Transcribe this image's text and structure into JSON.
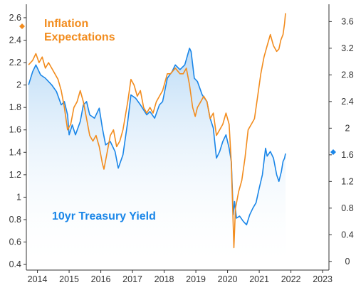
{
  "chart_data": {
    "type": "line",
    "title": "",
    "xlabel": "",
    "ylabel": "",
    "x_ticks": [
      "2014",
      "2015",
      "2016",
      "2017",
      "2018",
      "2019",
      "2020",
      "2021",
      "2022",
      "2023"
    ],
    "x_range": [
      2013.65,
      2023.2
    ],
    "y_left": {
      "ticks": [
        "0.4",
        "0.6",
        "0.8",
        "1",
        "1.2",
        "1.4",
        "1.6",
        "1.8",
        "2",
        "2.2",
        "2.4",
        "2.6"
      ],
      "range": [
        0.35,
        2.72
      ]
    },
    "y_right": {
      "ticks": [
        "0",
        "0.4",
        "0.8",
        "1.2",
        "1.6",
        "2",
        "2.4",
        "2.8",
        "3.2",
        "3.6"
      ],
      "range": [
        -0.13,
        3.86
      ]
    },
    "grid": false,
    "series": [
      {
        "name": "10yr Treasury Yield",
        "axis": "right",
        "color": "#1a86e8",
        "fill": true,
        "points": [
          [
            2013.72,
            2.65
          ],
          [
            2013.85,
            2.85
          ],
          [
            2013.95,
            2.95
          ],
          [
            2014.1,
            2.8
          ],
          [
            2014.25,
            2.75
          ],
          [
            2014.45,
            2.65
          ],
          [
            2014.6,
            2.55
          ],
          [
            2014.75,
            2.35
          ],
          [
            2014.85,
            2.4
          ],
          [
            2014.95,
            2.2
          ],
          [
            2015.0,
            1.9
          ],
          [
            2015.1,
            2.05
          ],
          [
            2015.2,
            1.9
          ],
          [
            2015.35,
            2.1
          ],
          [
            2015.45,
            2.35
          ],
          [
            2015.55,
            2.4
          ],
          [
            2015.65,
            2.2
          ],
          [
            2015.8,
            2.15
          ],
          [
            2015.95,
            2.3
          ],
          [
            2016.05,
            2.0
          ],
          [
            2016.15,
            1.75
          ],
          [
            2016.3,
            1.8
          ],
          [
            2016.45,
            1.65
          ],
          [
            2016.55,
            1.4
          ],
          [
            2016.7,
            1.6
          ],
          [
            2016.85,
            2.1
          ],
          [
            2016.95,
            2.5
          ],
          [
            2017.1,
            2.45
          ],
          [
            2017.25,
            2.35
          ],
          [
            2017.45,
            2.2
          ],
          [
            2017.55,
            2.25
          ],
          [
            2017.7,
            2.15
          ],
          [
            2017.85,
            2.35
          ],
          [
            2017.95,
            2.4
          ],
          [
            2018.1,
            2.75
          ],
          [
            2018.25,
            2.85
          ],
          [
            2018.35,
            2.95
          ],
          [
            2018.5,
            2.88
          ],
          [
            2018.65,
            2.95
          ],
          [
            2018.8,
            3.2
          ],
          [
            2018.85,
            3.15
          ],
          [
            2018.95,
            2.75
          ],
          [
            2019.05,
            2.7
          ],
          [
            2019.2,
            2.5
          ],
          [
            2019.35,
            2.4
          ],
          [
            2019.45,
            2.15
          ],
          [
            2019.55,
            2.0
          ],
          [
            2019.65,
            1.55
          ],
          [
            2019.75,
            1.65
          ],
          [
            2019.85,
            1.8
          ],
          [
            2019.95,
            1.9
          ],
          [
            2020.05,
            1.7
          ],
          [
            2020.12,
            1.5
          ],
          [
            2020.18,
            0.7
          ],
          [
            2020.22,
            0.9
          ],
          [
            2020.28,
            0.65
          ],
          [
            2020.38,
            0.68
          ],
          [
            2020.5,
            0.6
          ],
          [
            2020.6,
            0.55
          ],
          [
            2020.7,
            0.7
          ],
          [
            2020.8,
            0.8
          ],
          [
            2020.9,
            0.88
          ],
          [
            2021.0,
            1.1
          ],
          [
            2021.1,
            1.3
          ],
          [
            2021.2,
            1.7
          ],
          [
            2021.25,
            1.58
          ],
          [
            2021.35,
            1.65
          ],
          [
            2021.45,
            1.55
          ],
          [
            2021.55,
            1.3
          ],
          [
            2021.62,
            1.2
          ],
          [
            2021.7,
            1.35
          ],
          [
            2021.75,
            1.5
          ],
          [
            2021.8,
            1.55
          ],
          [
            2021.83,
            1.62
          ]
        ]
      },
      {
        "name": "Inflation Expectations",
        "axis": "left",
        "color": "#f28c1e",
        "fill": false,
        "points": [
          [
            2013.72,
            2.18
          ],
          [
            2013.85,
            2.22
          ],
          [
            2013.95,
            2.28
          ],
          [
            2014.05,
            2.2
          ],
          [
            2014.15,
            2.25
          ],
          [
            2014.25,
            2.15
          ],
          [
            2014.35,
            2.2
          ],
          [
            2014.45,
            2.15
          ],
          [
            2014.55,
            2.1
          ],
          [
            2014.65,
            2.05
          ],
          [
            2014.75,
            1.95
          ],
          [
            2014.85,
            1.8
          ],
          [
            2014.95,
            1.6
          ],
          [
            2015.05,
            1.65
          ],
          [
            2015.15,
            1.8
          ],
          [
            2015.25,
            1.85
          ],
          [
            2015.35,
            1.95
          ],
          [
            2015.45,
            1.85
          ],
          [
            2015.55,
            1.7
          ],
          [
            2015.65,
            1.55
          ],
          [
            2015.75,
            1.5
          ],
          [
            2015.85,
            1.55
          ],
          [
            2015.95,
            1.45
          ],
          [
            2016.05,
            1.3
          ],
          [
            2016.1,
            1.25
          ],
          [
            2016.2,
            1.4
          ],
          [
            2016.3,
            1.55
          ],
          [
            2016.4,
            1.6
          ],
          [
            2016.5,
            1.45
          ],
          [
            2016.6,
            1.5
          ],
          [
            2016.7,
            1.6
          ],
          [
            2016.85,
            1.85
          ],
          [
            2016.95,
            2.05
          ],
          [
            2017.05,
            2.0
          ],
          [
            2017.15,
            1.9
          ],
          [
            2017.25,
            1.95
          ],
          [
            2017.35,
            1.8
          ],
          [
            2017.45,
            1.75
          ],
          [
            2017.55,
            1.8
          ],
          [
            2017.65,
            1.75
          ],
          [
            2017.75,
            1.85
          ],
          [
            2017.85,
            1.9
          ],
          [
            2017.95,
            1.95
          ],
          [
            2018.1,
            2.1
          ],
          [
            2018.2,
            2.1
          ],
          [
            2018.35,
            2.15
          ],
          [
            2018.5,
            2.1
          ],
          [
            2018.6,
            2.1
          ],
          [
            2018.7,
            2.15
          ],
          [
            2018.8,
            2.0
          ],
          [
            2018.9,
            1.8
          ],
          [
            2018.98,
            1.72
          ],
          [
            2019.05,
            1.8
          ],
          [
            2019.15,
            1.85
          ],
          [
            2019.25,
            1.9
          ],
          [
            2019.35,
            1.85
          ],
          [
            2019.45,
            1.7
          ],
          [
            2019.55,
            1.75
          ],
          [
            2019.65,
            1.55
          ],
          [
            2019.75,
            1.6
          ],
          [
            2019.85,
            1.65
          ],
          [
            2019.95,
            1.75
          ],
          [
            2020.05,
            1.65
          ],
          [
            2020.12,
            1.3
          ],
          [
            2020.2,
            0.55
          ],
          [
            2020.25,
            0.9
          ],
          [
            2020.35,
            1.05
          ],
          [
            2020.45,
            1.15
          ],
          [
            2020.55,
            1.35
          ],
          [
            2020.65,
            1.6
          ],
          [
            2020.75,
            1.65
          ],
          [
            2020.85,
            1.7
          ],
          [
            2020.95,
            1.9
          ],
          [
            2021.05,
            2.1
          ],
          [
            2021.15,
            2.25
          ],
          [
            2021.25,
            2.35
          ],
          [
            2021.35,
            2.45
          ],
          [
            2021.45,
            2.35
          ],
          [
            2021.55,
            2.3
          ],
          [
            2021.62,
            2.32
          ],
          [
            2021.68,
            2.4
          ],
          [
            2021.75,
            2.45
          ],
          [
            2021.8,
            2.55
          ],
          [
            2021.83,
            2.64
          ]
        ]
      }
    ],
    "annotations": [
      {
        "text_lines": [
          "Inflation",
          "Expectations"
        ],
        "series": "Inflation Expectations"
      },
      {
        "text_lines": [
          "10yr Treasury Yield"
        ],
        "series": "10yr Treasury Yield"
      }
    ]
  }
}
